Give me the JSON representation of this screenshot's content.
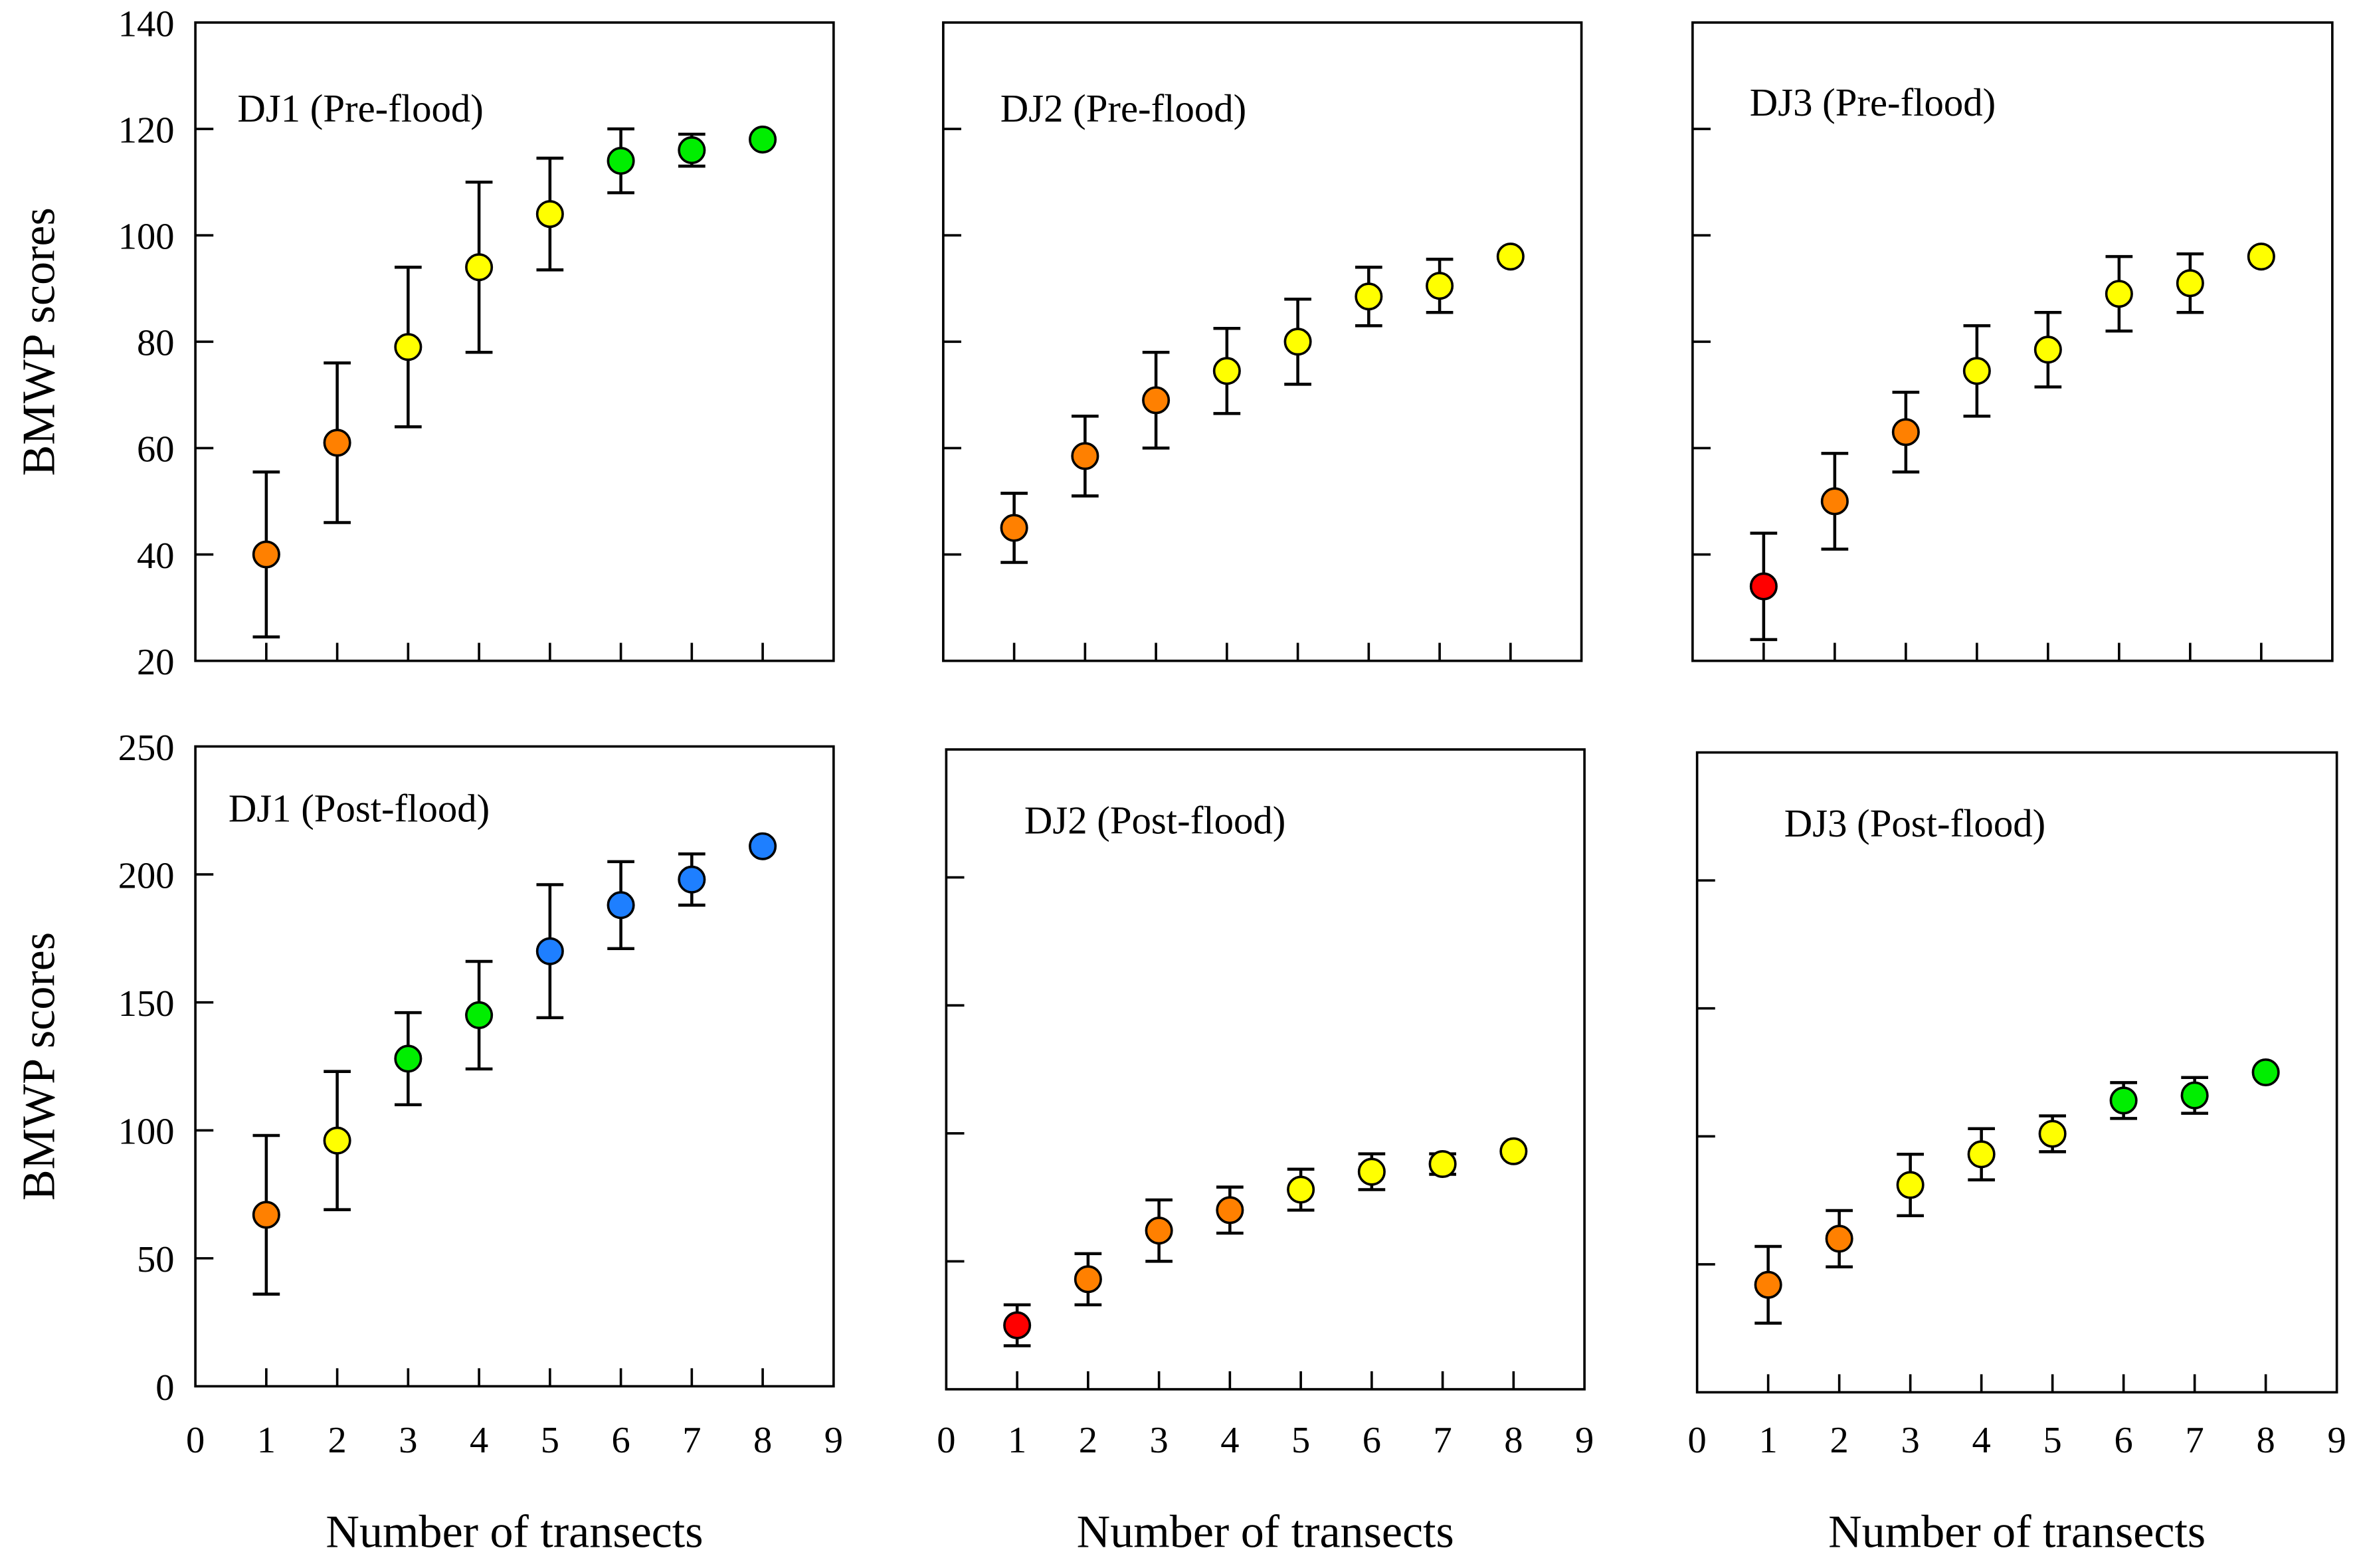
{
  "colors": {
    "red": "#ff0000",
    "orange": "#ff8000",
    "yellow": "#ffff00",
    "green": "#00ee00",
    "blue": "#1e7fff"
  },
  "chart_data": [
    {
      "type": "scatter",
      "title": "DJ1 (Pre-flood)",
      "ylabel": "BMWP scores",
      "xlabel": "",
      "ylim": [
        20,
        140
      ],
      "yticks": [
        20,
        40,
        60,
        80,
        100,
        120,
        140
      ],
      "xlim": [
        0,
        9
      ],
      "xticks": [
        0,
        1,
        2,
        3,
        4,
        5,
        6,
        7,
        8,
        9
      ],
      "x": [
        1,
        2,
        3,
        4,
        5,
        6,
        7,
        8
      ],
      "y": [
        40,
        61,
        79,
        94,
        104,
        114,
        116,
        118
      ],
      "err": [
        15.5,
        15,
        15,
        16,
        10.5,
        6,
        3,
        0
      ],
      "point_colors": [
        "orange",
        "orange",
        "yellow",
        "yellow",
        "yellow",
        "green",
        "green",
        "green"
      ]
    },
    {
      "type": "scatter",
      "title": "DJ2 (Pre-flood)",
      "ylabel": "",
      "xlabel": "",
      "ylim": [
        20,
        140
      ],
      "yticks": [
        20,
        40,
        60,
        80,
        100,
        120,
        140
      ],
      "xlim": [
        0,
        9
      ],
      "xticks": [
        0,
        1,
        2,
        3,
        4,
        5,
        6,
        7,
        8,
        9
      ],
      "x": [
        1,
        2,
        3,
        4,
        5,
        6,
        7,
        8
      ],
      "y": [
        45,
        58.5,
        69,
        74.5,
        80,
        88.5,
        90.5,
        96
      ],
      "err": [
        6.5,
        7.5,
        9,
        8,
        8,
        5.5,
        5,
        0
      ],
      "point_colors": [
        "orange",
        "orange",
        "orange",
        "yellow",
        "yellow",
        "yellow",
        "yellow",
        "yellow"
      ]
    },
    {
      "type": "scatter",
      "title": "DJ3 (Pre-flood)",
      "ylabel": "",
      "xlabel": "",
      "ylim": [
        20,
        140
      ],
      "yticks": [
        20,
        40,
        60,
        80,
        100,
        120,
        140
      ],
      "xlim": [
        0,
        9
      ],
      "xticks": [
        0,
        1,
        2,
        3,
        4,
        5,
        6,
        7,
        8,
        9
      ],
      "x": [
        1,
        2,
        3,
        4,
        5,
        6,
        7,
        8
      ],
      "y": [
        34,
        50,
        63,
        74.5,
        78.5,
        89,
        91,
        96
      ],
      "err": [
        10,
        9,
        7.5,
        8.5,
        7,
        7,
        5.5,
        0
      ],
      "point_colors": [
        "red",
        "orange",
        "orange",
        "yellow",
        "yellow",
        "yellow",
        "yellow",
        "yellow"
      ]
    },
    {
      "type": "scatter",
      "title": "DJ1 (Post-flood)",
      "ylabel": "BMWP scores",
      "xlabel": "Number of transects",
      "ylim": [
        0,
        250
      ],
      "yticks": [
        0,
        50,
        100,
        150,
        200,
        250
      ],
      "xlim": [
        0,
        9
      ],
      "xticks": [
        0,
        1,
        2,
        3,
        4,
        5,
        6,
        7,
        8,
        9
      ],
      "x": [
        1,
        2,
        3,
        4,
        5,
        6,
        7,
        8
      ],
      "y": [
        67,
        96,
        128,
        145,
        170,
        188,
        198,
        211
      ],
      "err": [
        31,
        27,
        18,
        21,
        26,
        17,
        10,
        0
      ],
      "point_colors": [
        "orange",
        "yellow",
        "green",
        "green",
        "blue",
        "blue",
        "blue",
        "blue"
      ]
    },
    {
      "type": "scatter",
      "title": "DJ2 (Post-flood)",
      "ylabel": "",
      "xlabel": "Number of transects",
      "ylim": [
        0,
        250
      ],
      "yticks": [
        0,
        50,
        100,
        150,
        200,
        250
      ],
      "xlim": [
        0,
        9
      ],
      "xticks": [
        0,
        1,
        2,
        3,
        4,
        5,
        6,
        7,
        8,
        9
      ],
      "x": [
        1,
        2,
        3,
        4,
        5,
        6,
        7,
        8
      ],
      "y": [
        25,
        43,
        62,
        70,
        78,
        85,
        88,
        93
      ],
      "err": [
        8,
        10,
        12,
        9,
        8,
        7,
        4,
        0
      ],
      "point_colors": [
        "red",
        "orange",
        "orange",
        "orange",
        "yellow",
        "yellow",
        "yellow",
        "yellow"
      ]
    },
    {
      "type": "scatter",
      "title": "DJ3 (Post-flood)",
      "ylabel": "",
      "xlabel": "Number of transects",
      "ylim": [
        0,
        250
      ],
      "yticks": [
        0,
        50,
        100,
        150,
        200,
        250
      ],
      "xlim": [
        0,
        9
      ],
      "xticks": [
        0,
        1,
        2,
        3,
        4,
        5,
        6,
        7,
        8,
        9
      ],
      "x": [
        1,
        2,
        3,
        4,
        5,
        6,
        7,
        8
      ],
      "y": [
        42,
        60,
        81,
        93,
        101,
        114,
        116,
        125
      ],
      "err": [
        15,
        11,
        12,
        10,
        7,
        7,
        7,
        0
      ],
      "point_colors": [
        "orange",
        "orange",
        "yellow",
        "yellow",
        "yellow",
        "green",
        "green",
        "green"
      ]
    }
  ]
}
